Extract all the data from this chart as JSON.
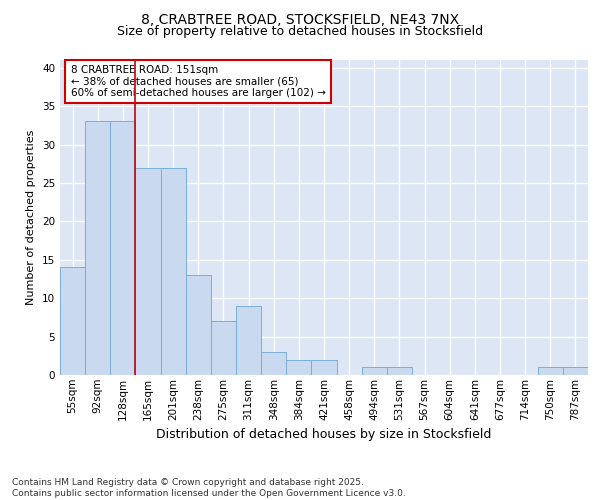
{
  "title1": "8, CRABTREE ROAD, STOCKSFIELD, NE43 7NX",
  "title2": "Size of property relative to detached houses in Stocksfield",
  "xlabel": "Distribution of detached houses by size in Stocksfield",
  "ylabel": "Number of detached properties",
  "categories": [
    "55sqm",
    "92sqm",
    "128sqm",
    "165sqm",
    "201sqm",
    "238sqm",
    "275sqm",
    "311sqm",
    "348sqm",
    "384sqm",
    "421sqm",
    "458sqm",
    "494sqm",
    "531sqm",
    "567sqm",
    "604sqm",
    "641sqm",
    "677sqm",
    "714sqm",
    "750sqm",
    "787sqm"
  ],
  "values": [
    14,
    33,
    33,
    27,
    27,
    13,
    7,
    9,
    3,
    2,
    2,
    0,
    1,
    1,
    0,
    0,
    0,
    0,
    0,
    1,
    1
  ],
  "bar_color": "#c9d9ef",
  "bar_edge_color": "#7aaed6",
  "red_line_x": 2.5,
  "annotation_text": "8 CRABTREE ROAD: 151sqm\n← 38% of detached houses are smaller (65)\n60% of semi-detached houses are larger (102) →",
  "annotation_box_color": "#ffffff",
  "annotation_box_edge": "#cc0000",
  "ylim": [
    0,
    41
  ],
  "yticks": [
    0,
    5,
    10,
    15,
    20,
    25,
    30,
    35,
    40
  ],
  "background_color": "#ffffff",
  "plot_background": "#dce6f5",
  "grid_color": "#ffffff",
  "footer": "Contains HM Land Registry data © Crown copyright and database right 2025.\nContains public sector information licensed under the Open Government Licence v3.0.",
  "title_fontsize": 10,
  "subtitle_fontsize": 9,
  "xlabel_fontsize": 9,
  "ylabel_fontsize": 8,
  "tick_fontsize": 7.5,
  "footer_fontsize": 6.5
}
